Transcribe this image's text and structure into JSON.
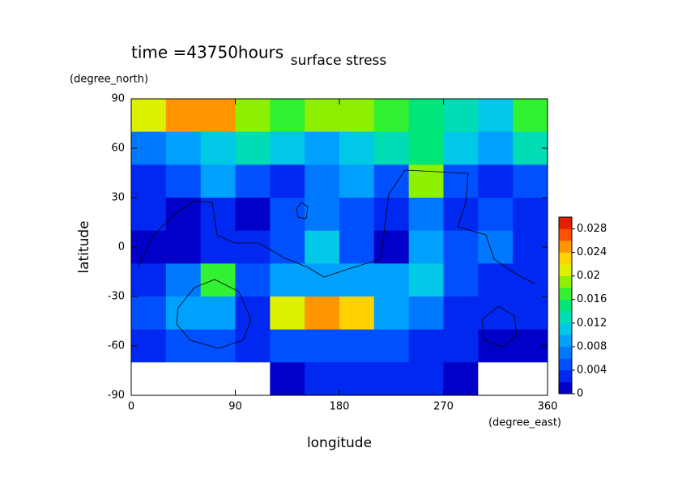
{
  "chart_data": {
    "type": "contour",
    "title": "surface stress",
    "subtitle": "time =43750hours",
    "x_label": "longitude",
    "x_unit": "(degree_east)",
    "y_label": "latitude",
    "y_unit": "(degree_north)",
    "xlim": [
      0,
      360
    ],
    "xticks": [
      0,
      90,
      180,
      270,
      360
    ],
    "ylim": [
      -90,
      90
    ],
    "yticks": [
      -90,
      -60,
      -30,
      0,
      30,
      60,
      90
    ],
    "x": [
      15,
      45,
      75,
      105,
      135,
      165,
      195,
      225,
      255,
      285,
      315,
      345
    ],
    "y": [
      80,
      60,
      40,
      20,
      0,
      -20,
      -40,
      -60,
      -80
    ],
    "z": [
      [
        0.022,
        0.026,
        0.026,
        0.02,
        0.018,
        0.02,
        0.02,
        0.018,
        0.016,
        0.014,
        0.012,
        0.018
      ],
      [
        0.008,
        0.01,
        0.012,
        0.014,
        0.012,
        0.01,
        0.012,
        0.014,
        0.016,
        0.012,
        0.01,
        0.014
      ],
      [
        0.004,
        0.006,
        0.01,
        0.006,
        0.004,
        0.008,
        0.01,
        0.006,
        0.02,
        0.006,
        0.004,
        0.006
      ],
      [
        0.004,
        0.002,
        0.004,
        0.002,
        0.006,
        0.008,
        0.006,
        0.004,
        0.008,
        0.004,
        0.006,
        0.004
      ],
      [
        0.002,
        0.002,
        0.004,
        0.004,
        0.006,
        0.012,
        0.006,
        0.002,
        0.01,
        0.006,
        0.008,
        0.004
      ],
      [
        0.004,
        0.008,
        0.018,
        0.006,
        0.01,
        0.01,
        0.01,
        0.01,
        0.012,
        0.006,
        0.004,
        0.004
      ],
      [
        0.006,
        0.01,
        0.01,
        0.004,
        0.022,
        0.026,
        0.024,
        0.01,
        0.008,
        0.004,
        0.004,
        0.004
      ],
      [
        0.004,
        0.006,
        0.006,
        0.004,
        0.006,
        0.006,
        0.006,
        0.006,
        0.004,
        0.004,
        0.002,
        0.002
      ],
      [
        0,
        0,
        0,
        0,
        0.002,
        0.004,
        0.004,
        0.004,
        0.004,
        0.002,
        0,
        0
      ]
    ],
    "clim": [
      0,
      0.03
    ],
    "levels": [
      0,
      0.002,
      0.004,
      0.006,
      0.008,
      0.01,
      0.012,
      0.014,
      0.016,
      0.018,
      0.02,
      0.022,
      0.024,
      0.026,
      0.028,
      0.03
    ],
    "colors": [
      "#ffffff",
      "#0000c8",
      "#0028f0",
      "#0050ff",
      "#0078ff",
      "#00a0ff",
      "#00c8e6",
      "#00dcb4",
      "#00e678",
      "#32f032",
      "#8cf000",
      "#dcf000",
      "#ffd200",
      "#ff9600",
      "#ff5000",
      "#e61e00"
    ],
    "cticks": [
      0,
      0.004,
      0.008,
      0.012,
      0.016,
      0.02,
      0.024,
      0.028
    ]
  }
}
